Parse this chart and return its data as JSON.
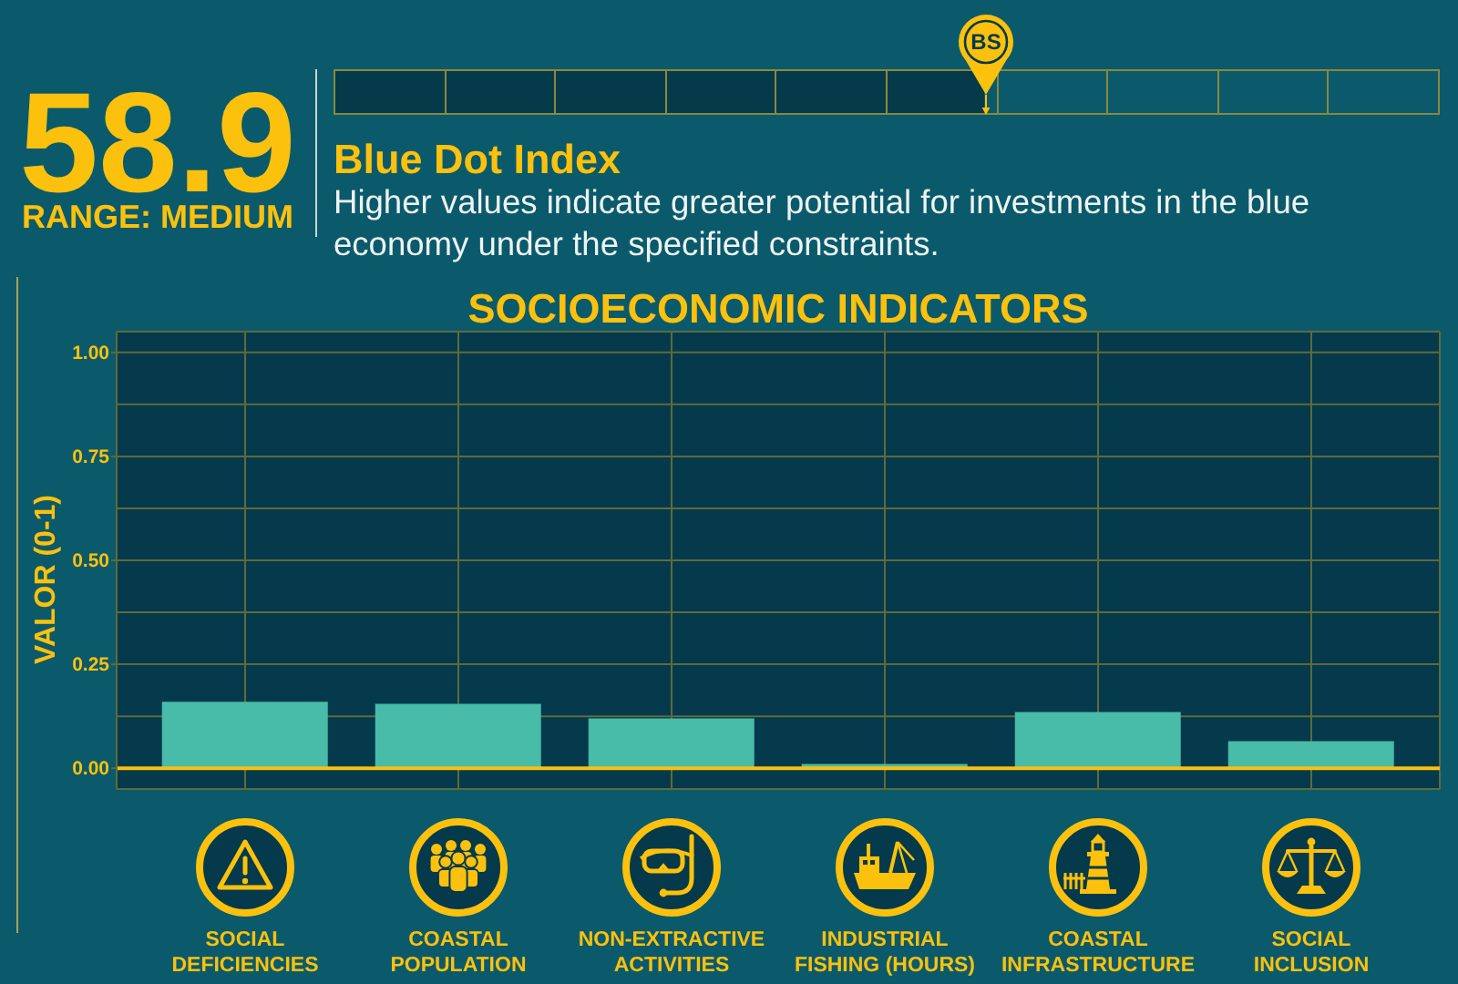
{
  "chart_data": [
    {
      "type": "other",
      "title": "Blue Dot Index",
      "subtitle": "Higher values indicate greater potential for investments in the blue economy under the specified constraints.",
      "categories": [
        "BS"
      ],
      "values": [
        58.9
      ],
      "color": "#053a4b",
      "data_labels": true,
      "annotations": [
        "RANGE: MEDIUM"
      ]
    },
    {
      "type": "bar",
      "title": "SOCIOECONOMIC INDICATORS",
      "ylabel": "VALOR (0-1)",
      "categories": [
        "SOCIAL DEFICIENCIES",
        "COASTAL POPULATION",
        "NON-EXTRACTIVE ACTIVITIES",
        "INDUSTRIAL FISHING (HOURS)",
        "COASTAL INFRASTRUCTURE",
        "SOCIAL INCLUSION"
      ],
      "values": [
        0.16,
        0.155,
        0.12,
        0.01,
        0.135,
        0.065
      ],
      "color": "#48bba9",
      "ylim": [
        -0.05,
        1.05
      ],
      "yticks": [
        {
          "value": 0,
          "label": "0.00"
        },
        {
          "value": 0.125,
          "label": null
        },
        {
          "value": 0.25,
          "label": "0.25"
        },
        {
          "value": 0.375,
          "label": null
        },
        {
          "value": 0.5,
          "label": "0.50"
        },
        {
          "value": 0.625,
          "label": null
        },
        {
          "value": 0.75,
          "label": "0.75"
        },
        {
          "value": 0.875,
          "label": null
        },
        {
          "value": 1,
          "label": "1.00"
        }
      ],
      "grid": true,
      "ref_lines": [
        {
          "axis": "y",
          "value": 0,
          "color": "#fcc10d"
        }
      ]
    }
  ]
}
